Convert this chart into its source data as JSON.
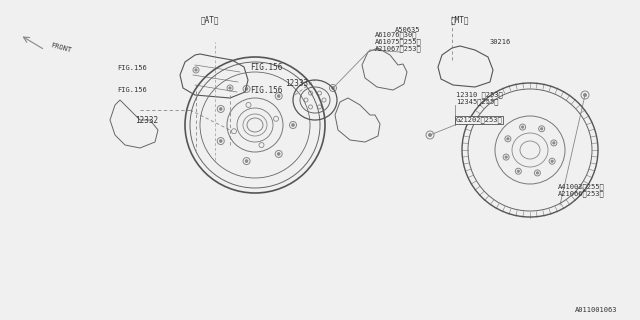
{
  "bg_color": "#f0f0f0",
  "line_color": "#888888",
  "text_color": "#333333",
  "title_color": "#000000",
  "fig_width": 6.4,
  "fig_height": 3.2,
  "labels": {
    "A61076": "A61076、30】",
    "A61075": "A61075〈255〉",
    "A21067": "A21067〈253〉",
    "12332": "12332",
    "12333": "12333",
    "A41002": "A41002〈255〉",
    "A21066": "A21066〈253〉",
    "G21202": "G21202〈253〉",
    "12310": "12310 〈253〉",
    "12345": "12345〈255〉",
    "FIG156_1": "FIG.156",
    "FIG156_2": "FIG.156",
    "FIG156_3": "FIG.156",
    "FIG156_4": "FIG.156",
    "AT": "〈AT〉",
    "MT": "〈MT〉",
    "A50635": "A50635",
    "30216": "30216",
    "FRONT": "FRONT",
    "catalog": "A011001063"
  }
}
